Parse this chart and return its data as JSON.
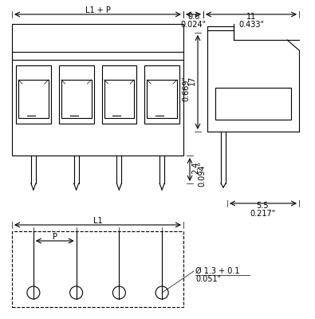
{
  "bg_color": "#ffffff",
  "line_color": "#000000",
  "gray_color": "#888888",
  "fig_width": 3.95,
  "fig_height": 4.0,
  "dpi": 100,
  "annotations": {
    "L1_P": "L1 + P",
    "dim_06": "0.6",
    "dim_024": "0.024\"",
    "dim_11": "11",
    "dim_0433": "0.433\"",
    "dim_24": "2.4",
    "dim_0094": "0.094\"",
    "dim_17": "17",
    "dim_0669": "0.669\"",
    "dim_55": "5.5",
    "dim_0217": "0.217\"",
    "L1": "L1",
    "P": "P",
    "hole": "Ø 1.3 + 0.1",
    "dim_0051": "0.051\""
  }
}
